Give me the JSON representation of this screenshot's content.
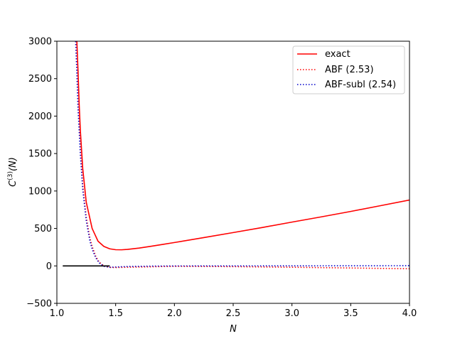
{
  "chart_data": {
    "type": "line",
    "xlabel": "N",
    "ylabel": {
      "base": "C",
      "sup": "(3)",
      "suffix": "(N)"
    },
    "xlim": [
      1.0,
      4.0
    ],
    "ylim": [
      -500,
      3000
    ],
    "xticks": [
      "1.0",
      "1.5",
      "2.0",
      "2.5",
      "3.0",
      "3.5",
      "4.0"
    ],
    "yticks": [
      "-500",
      "0",
      "500",
      "1000",
      "1500",
      "2000",
      "2500",
      "3000"
    ],
    "grid": false,
    "legend": "top-right",
    "series": [
      {
        "name": "exact",
        "color": "#ff0000",
        "style": "solid",
        "points": [
          [
            1.17,
            3000
          ],
          [
            1.18,
            2600
          ],
          [
            1.19,
            2150
          ],
          [
            1.2,
            1800
          ],
          [
            1.22,
            1300
          ],
          [
            1.25,
            850
          ],
          [
            1.3,
            500
          ],
          [
            1.35,
            330
          ],
          [
            1.4,
            260
          ],
          [
            1.45,
            228
          ],
          [
            1.5,
            216
          ],
          [
            1.55,
            215
          ],
          [
            1.6,
            220
          ],
          [
            1.7,
            238
          ],
          [
            1.8,
            262
          ],
          [
            1.9,
            287
          ],
          [
            2.0,
            312
          ],
          [
            2.25,
            378
          ],
          [
            2.5,
            445
          ],
          [
            2.75,
            513
          ],
          [
            3.0,
            585
          ],
          [
            3.25,
            655
          ],
          [
            3.5,
            727
          ],
          [
            3.75,
            803
          ],
          [
            4.0,
            880
          ]
        ]
      },
      {
        "name": "ABF (2.53)",
        "color": "#ff0000",
        "style": "dotted",
        "points": [
          [
            1.16,
            3000
          ],
          [
            1.17,
            2600
          ],
          [
            1.18,
            2150
          ],
          [
            1.2,
            1550
          ],
          [
            1.22,
            1080
          ],
          [
            1.25,
            650
          ],
          [
            1.28,
            380
          ],
          [
            1.3,
            260
          ],
          [
            1.33,
            130
          ],
          [
            1.36,
            50
          ],
          [
            1.4,
            0
          ],
          [
            1.45,
            -20
          ],
          [
            1.5,
            -22
          ],
          [
            1.6,
            -18
          ],
          [
            1.8,
            -12
          ],
          [
            2.0,
            -5
          ],
          [
            2.5,
            -10
          ],
          [
            3.0,
            -18
          ],
          [
            3.5,
            -28
          ],
          [
            4.0,
            -38
          ]
        ]
      },
      {
        "name": "ABF-subl (2.54)",
        "color": "#0000cc",
        "style": "dotted",
        "points": [
          [
            1.16,
            3000
          ],
          [
            1.17,
            2580
          ],
          [
            1.18,
            2100
          ],
          [
            1.2,
            1480
          ],
          [
            1.22,
            1020
          ],
          [
            1.25,
            600
          ],
          [
            1.28,
            340
          ],
          [
            1.3,
            225
          ],
          [
            1.33,
            110
          ],
          [
            1.36,
            40
          ],
          [
            1.4,
            -5
          ],
          [
            1.45,
            -18
          ],
          [
            1.5,
            -15
          ],
          [
            1.6,
            -8
          ],
          [
            1.8,
            -3
          ],
          [
            2.0,
            -1
          ],
          [
            2.5,
            0
          ],
          [
            3.0,
            1
          ],
          [
            3.5,
            2
          ],
          [
            4.0,
            3
          ]
        ]
      },
      {
        "name": "",
        "color": "#000000",
        "style": "solid",
        "points": [
          [
            1.05,
            0
          ],
          [
            1.45,
            0
          ]
        ]
      }
    ]
  }
}
